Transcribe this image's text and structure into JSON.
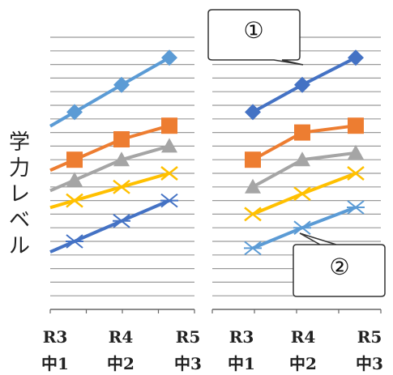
{
  "chart_data": [
    {
      "type": "line",
      "ylabel": "学力レベル",
      "categories": [
        "R3 中1",
        "R4 中2",
        "R5 中3"
      ],
      "x_ticks": [
        {
          "year": "R3",
          "grade": "中1"
        },
        {
          "year": "R4",
          "grade": "中2"
        },
        {
          "year": "R5",
          "grade": "中3"
        }
      ],
      "grid": true,
      "series": [
        {
          "marker": "diamond",
          "color": "#5B9BD5",
          "values": [
            14.5,
            16.5,
            18.5
          ]
        },
        {
          "marker": "square",
          "color": "#ED7D31",
          "values": [
            11.0,
            12.5,
            13.5
          ]
        },
        {
          "marker": "triangle",
          "color": "#A5A5A5",
          "values": [
            9.5,
            11.0,
            12.0
          ]
        },
        {
          "marker": "x",
          "color": "#FFC000",
          "values": [
            8.0,
            9.0,
            10.0
          ]
        },
        {
          "marker": "star",
          "color": "#4472C4",
          "values": [
            5.0,
            6.5,
            8.0
          ]
        }
      ]
    },
    {
      "type": "line",
      "categories": [
        "R3 中1",
        "R4 中2",
        "R5 中3"
      ],
      "x_ticks": [
        {
          "year": "R3",
          "grade": "中1"
        },
        {
          "year": "R4",
          "grade": "中2"
        },
        {
          "year": "R5",
          "grade": "中3"
        }
      ],
      "grid": true,
      "annotations": [
        "①",
        "②"
      ],
      "series": [
        {
          "marker": "diamond",
          "color": "#4472C4",
          "values": [
            14.5,
            16.5,
            18.5
          ]
        },
        {
          "marker": "square",
          "color": "#ED7D31",
          "values": [
            11.0,
            13.0,
            13.5
          ]
        },
        {
          "marker": "triangle",
          "color": "#A5A5A5",
          "values": [
            9.0,
            11.0,
            11.5
          ]
        },
        {
          "marker": "x",
          "color": "#FFC000",
          "values": [
            7.0,
            8.5,
            10.0
          ]
        },
        {
          "marker": "star",
          "color": "#5B9BD5",
          "values": [
            4.5,
            6.0,
            7.5
          ]
        }
      ]
    }
  ]
}
